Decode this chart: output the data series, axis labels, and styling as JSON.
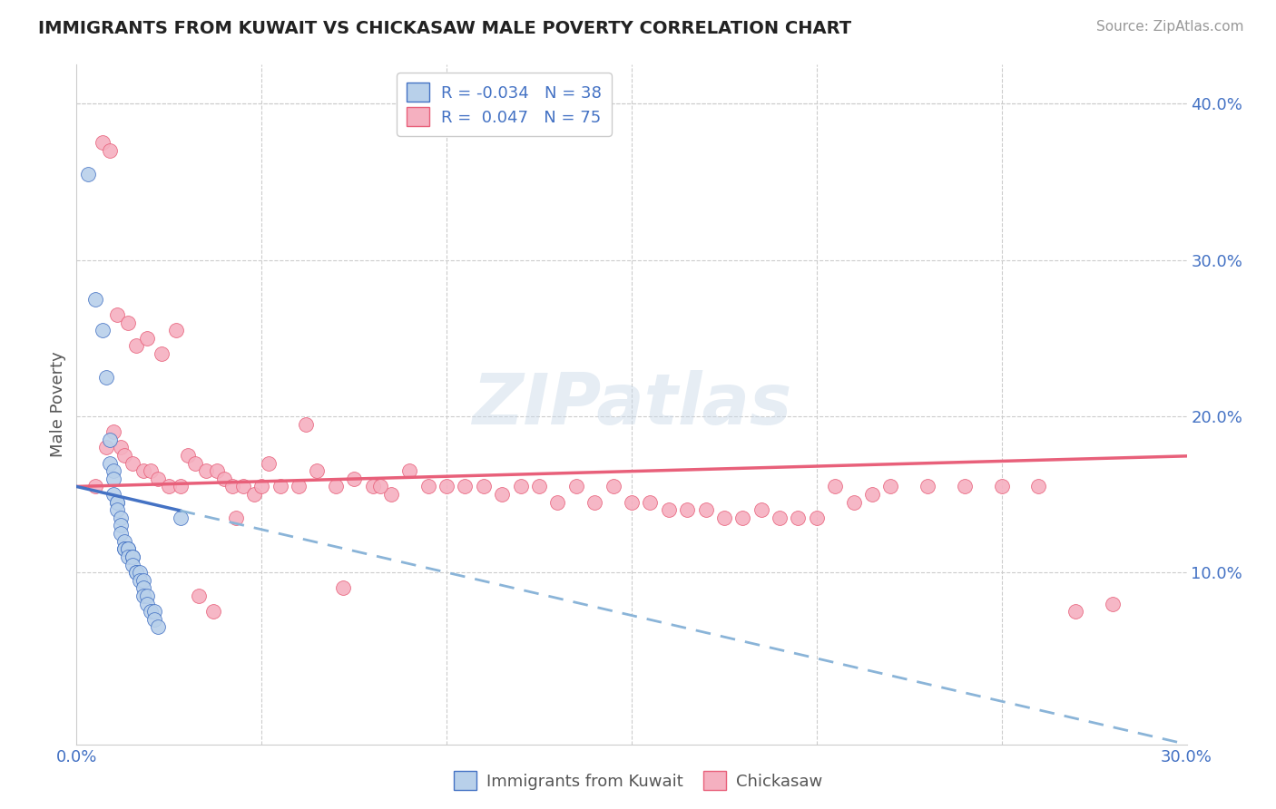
{
  "title": "IMMIGRANTS FROM KUWAIT VS CHICKASAW MALE POVERTY CORRELATION CHART",
  "source": "Source: ZipAtlas.com",
  "ylabel": "Male Poverty",
  "right_yticks": [
    "40.0%",
    "30.0%",
    "20.0%",
    "10.0%"
  ],
  "right_ytick_vals": [
    0.4,
    0.3,
    0.2,
    0.1
  ],
  "xlim": [
    0.0,
    0.3
  ],
  "ylim": [
    -0.01,
    0.425
  ],
  "legend1_r": "-0.034",
  "legend1_n": "38",
  "legend2_r": "0.047",
  "legend2_n": "75",
  "color_blue": "#b8d0ea",
  "color_pink": "#f5b0c0",
  "color_blue_line": "#4472C4",
  "color_pink_line": "#E8607A",
  "color_blue_dashed": "#8ab4d8",
  "watermark": "ZIPatlas",
  "blue_points_x": [
    0.003,
    0.005,
    0.007,
    0.008,
    0.009,
    0.009,
    0.01,
    0.01,
    0.01,
    0.011,
    0.011,
    0.011,
    0.012,
    0.012,
    0.012,
    0.013,
    0.013,
    0.013,
    0.014,
    0.014,
    0.014,
    0.015,
    0.015,
    0.015,
    0.016,
    0.016,
    0.017,
    0.017,
    0.018,
    0.018,
    0.018,
    0.019,
    0.019,
    0.02,
    0.021,
    0.021,
    0.022,
    0.028
  ],
  "blue_points_y": [
    0.355,
    0.275,
    0.255,
    0.225,
    0.185,
    0.17,
    0.165,
    0.16,
    0.15,
    0.145,
    0.145,
    0.14,
    0.135,
    0.13,
    0.125,
    0.12,
    0.115,
    0.115,
    0.115,
    0.115,
    0.11,
    0.11,
    0.11,
    0.105,
    0.1,
    0.1,
    0.1,
    0.095,
    0.095,
    0.09,
    0.085,
    0.085,
    0.08,
    0.075,
    0.075,
    0.07,
    0.065,
    0.135
  ],
  "pink_points_x": [
    0.005,
    0.008,
    0.01,
    0.012,
    0.013,
    0.015,
    0.018,
    0.02,
    0.022,
    0.025,
    0.028,
    0.03,
    0.032,
    0.035,
    0.038,
    0.04,
    0.042,
    0.045,
    0.048,
    0.05,
    0.055,
    0.06,
    0.065,
    0.07,
    0.075,
    0.08,
    0.085,
    0.09,
    0.095,
    0.1,
    0.105,
    0.11,
    0.115,
    0.12,
    0.125,
    0.13,
    0.135,
    0.14,
    0.145,
    0.15,
    0.155,
    0.16,
    0.165,
    0.17,
    0.175,
    0.18,
    0.185,
    0.19,
    0.195,
    0.2,
    0.007,
    0.009,
    0.011,
    0.014,
    0.016,
    0.019,
    0.023,
    0.027,
    0.033,
    0.037,
    0.043,
    0.052,
    0.062,
    0.072,
    0.082,
    0.205,
    0.21,
    0.215,
    0.22,
    0.23,
    0.24,
    0.25,
    0.26,
    0.27,
    0.28
  ],
  "pink_points_y": [
    0.155,
    0.18,
    0.19,
    0.18,
    0.175,
    0.17,
    0.165,
    0.165,
    0.16,
    0.155,
    0.155,
    0.175,
    0.17,
    0.165,
    0.165,
    0.16,
    0.155,
    0.155,
    0.15,
    0.155,
    0.155,
    0.155,
    0.165,
    0.155,
    0.16,
    0.155,
    0.15,
    0.165,
    0.155,
    0.155,
    0.155,
    0.155,
    0.15,
    0.155,
    0.155,
    0.145,
    0.155,
    0.145,
    0.155,
    0.145,
    0.145,
    0.14,
    0.14,
    0.14,
    0.135,
    0.135,
    0.14,
    0.135,
    0.135,
    0.135,
    0.375,
    0.37,
    0.265,
    0.26,
    0.245,
    0.25,
    0.24,
    0.255,
    0.085,
    0.075,
    0.135,
    0.17,
    0.195,
    0.09,
    0.155,
    0.155,
    0.145,
    0.15,
    0.155,
    0.155,
    0.155,
    0.155,
    0.155,
    0.075,
    0.08
  ]
}
